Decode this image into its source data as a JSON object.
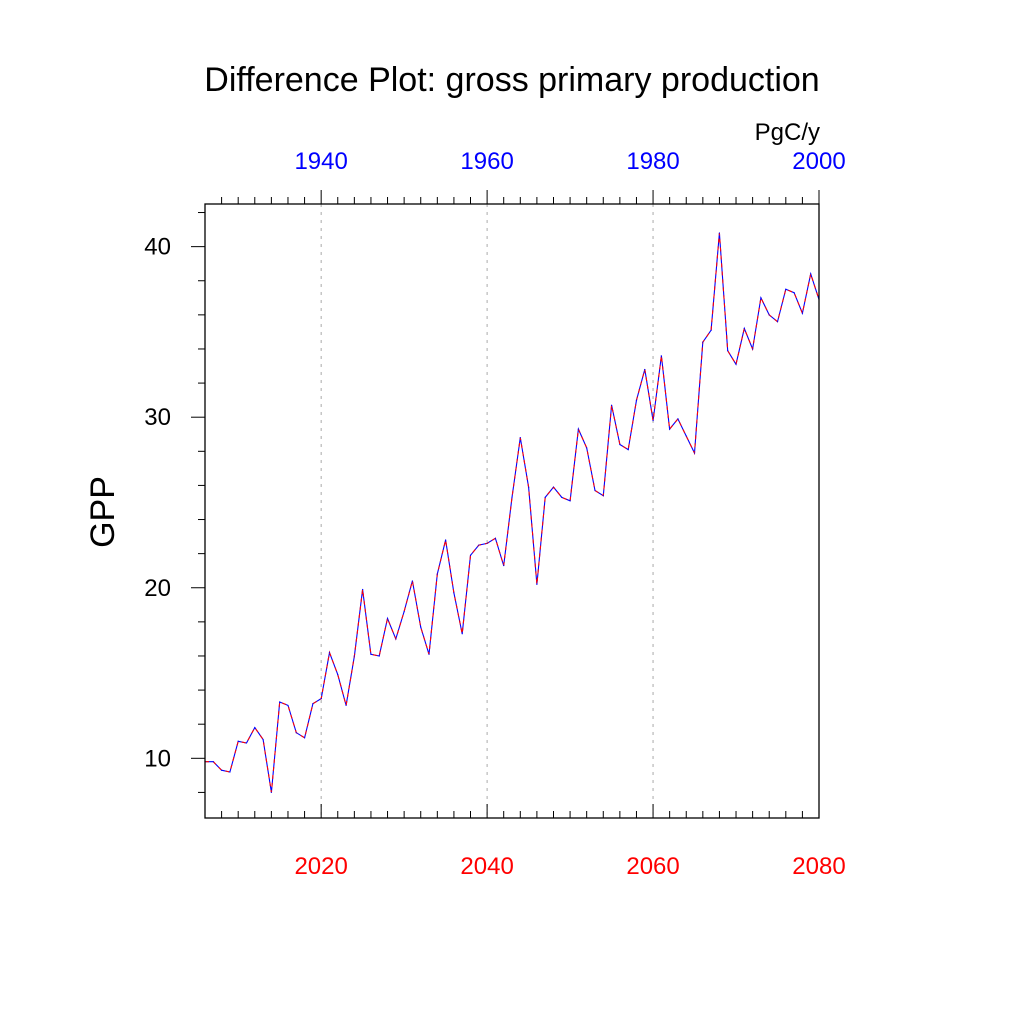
{
  "chart_data": {
    "type": "line",
    "title": "Difference Plot: gross primary production",
    "units": "PgC/y",
    "ylabel": "GPP",
    "xlim": [
      2006,
      2080
    ],
    "ylim": [
      6.5,
      42.5
    ],
    "grid": "vertical dashed at major bottom ticks",
    "bottom_axis": {
      "color": "#ff0000",
      "ticks": [
        2020,
        2040,
        2060,
        2080
      ],
      "tick_labels": [
        "2020",
        "2040",
        "2060",
        "2080"
      ]
    },
    "top_axis": {
      "color": "#0000ff",
      "offset_years": -80,
      "ticks": [
        1940,
        1960,
        1980,
        2000
      ],
      "tick_labels": [
        "1940",
        "1960",
        "1980",
        "2000"
      ]
    },
    "y_ticks": [
      10,
      20,
      30,
      40
    ],
    "y_tick_labels": [
      "10",
      "20",
      "30",
      "40"
    ],
    "series": [
      {
        "color_a": "#0000ff",
        "color_b": "#ff0000",
        "x": [
          2006,
          2007,
          2008,
          2009,
          2010,
          2011,
          2012,
          2013,
          2014,
          2015,
          2016,
          2017,
          2018,
          2019,
          2020,
          2021,
          2022,
          2023,
          2024,
          2025,
          2026,
          2027,
          2028,
          2029,
          2030,
          2031,
          2032,
          2033,
          2034,
          2035,
          2036,
          2037,
          2038,
          2039,
          2040,
          2041,
          2042,
          2043,
          2044,
          2045,
          2046,
          2047,
          2048,
          2049,
          2050,
          2051,
          2052,
          2053,
          2054,
          2055,
          2056,
          2057,
          2058,
          2059,
          2060,
          2061,
          2062,
          2063,
          2064,
          2065,
          2066,
          2067,
          2068,
          2069,
          2070,
          2071,
          2072,
          2073,
          2074,
          2075,
          2076,
          2077,
          2078,
          2079,
          2080
        ],
        "values": [
          9.8,
          9.8,
          9.3,
          9.2,
          11.0,
          10.9,
          11.8,
          11.1,
          8.0,
          13.3,
          13.1,
          11.5,
          11.2,
          13.2,
          13.5,
          16.2,
          14.9,
          13.1,
          16.0,
          19.9,
          16.1,
          16.0,
          18.2,
          17.0,
          18.6,
          20.4,
          17.7,
          16.1,
          20.8,
          22.8,
          19.7,
          17.3,
          21.9,
          22.5,
          22.6,
          22.9,
          21.3,
          25.3,
          28.8,
          25.9,
          20.2,
          25.3,
          25.9,
          25.3,
          25.1,
          29.3,
          28.2,
          25.7,
          25.4,
          30.7,
          28.4,
          28.1,
          31.0,
          32.8,
          29.8,
          33.6,
          29.3,
          29.9,
          28.9,
          27.9,
          34.4,
          35.1,
          40.8,
          33.9,
          33.1,
          35.2,
          34.0,
          37.0,
          36.0,
          35.6,
          37.5,
          37.3,
          36.1,
          38.4,
          36.9
        ]
      }
    ]
  }
}
